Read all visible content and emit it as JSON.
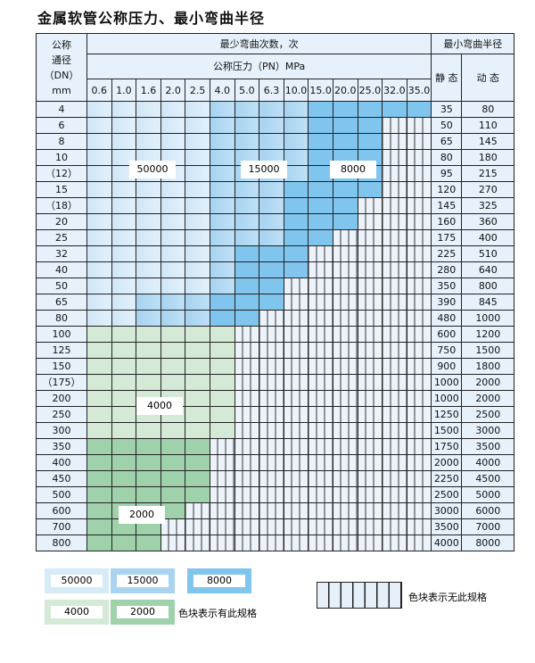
{
  "title": "金属软管公称压力、最小弯曲半径",
  "header": {
    "dn_label": [
      "公称",
      "通径",
      "（DN）",
      "mm"
    ],
    "cycles_label": "最少弯曲次数，次",
    "pressure_label": "公称压力（PN）MPa",
    "radius_label": "最小弯曲半径",
    "static_label": "静 态",
    "dynamic_label": "动 态",
    "pressures": [
      "0.6",
      "1.0",
      "1.6",
      "2.0",
      "2.5",
      "4.0",
      "5.0",
      "6.3",
      "10.0",
      "15.0",
      "20.0",
      "25.0",
      "32.0",
      "35.0"
    ]
  },
  "category_key": {
    "L": "50000",
    "M": "15000",
    "D": "8000",
    "G": "4000",
    "H": "2000",
    "X": "无此规格"
  },
  "colors": {
    "L": "#d6eaf8",
    "M": "#a8d4f2",
    "D": "#80c5ee",
    "G": "#d4e9d6",
    "H": "#9fd2ab"
  },
  "rows": [
    {
      "dn": "4",
      "cells": "LLLLLMMMMDDDDD",
      "static": "35",
      "dynamic": "80"
    },
    {
      "dn": "6",
      "cells": "LLLLLMMMMDDDXX",
      "static": "50",
      "dynamic": "110"
    },
    {
      "dn": "8",
      "cells": "LLLLLMMMMDDDXX",
      "static": "65",
      "dynamic": "145"
    },
    {
      "dn": "10",
      "cells": "LLLLLMMMMDDDXX",
      "static": "80",
      "dynamic": "180"
    },
    {
      "dn": "（12）",
      "cells": "LLLLLMMMMDDDXX",
      "static": "95",
      "dynamic": "215"
    },
    {
      "dn": "15",
      "cells": "LLLLLMMMDDDDXX",
      "static": "120",
      "dynamic": "270"
    },
    {
      "dn": "（18）",
      "cells": "LLLLLMMMDDDXXX",
      "static": "145",
      "dynamic": "325"
    },
    {
      "dn": "20",
      "cells": "LLLLLMMMDDDXXX",
      "static": "160",
      "dynamic": "360"
    },
    {
      "dn": "25",
      "cells": "LLLLLMMMDDXXXX",
      "static": "175",
      "dynamic": "400"
    },
    {
      "dn": "32",
      "cells": "LLLLLMDDDXXXXX",
      "static": "225",
      "dynamic": "510"
    },
    {
      "dn": "40",
      "cells": "LLLLLMDDDXXXXX",
      "static": "280",
      "dynamic": "640"
    },
    {
      "dn": "50",
      "cells": "LLLLLMDDXXXXXX",
      "static": "350",
      "dynamic": "800"
    },
    {
      "dn": "65",
      "cells": "LLMMMDDDXXXXXX",
      "static": "390",
      "dynamic": "845"
    },
    {
      "dn": "80",
      "cells": "LLMMMDDXXXXXXX",
      "static": "480",
      "dynamic": "1000"
    },
    {
      "dn": "100",
      "cells": "GGGGGGXXXXXXXX",
      "static": "600",
      "dynamic": "1200"
    },
    {
      "dn": "125",
      "cells": "GGGGGGXXXXXXXX",
      "static": "750",
      "dynamic": "1500"
    },
    {
      "dn": "150",
      "cells": "GGGGGGXXXXXXXX",
      "static": "900",
      "dynamic": "1800"
    },
    {
      "dn": "（175）",
      "cells": "GGGGGGXXXXXXXX",
      "static": "1000",
      "dynamic": "2000"
    },
    {
      "dn": "200",
      "cells": "GGGGGGXXXXXXXX",
      "static": "1000",
      "dynamic": "2000"
    },
    {
      "dn": "250",
      "cells": "GGGGGGXXXXXXXX",
      "static": "1250",
      "dynamic": "2500"
    },
    {
      "dn": "300",
      "cells": "GGGGGGXXXXXXXX",
      "static": "1500",
      "dynamic": "3000"
    },
    {
      "dn": "350",
      "cells": "HHHHHXXXXXXXXX",
      "static": "1750",
      "dynamic": "3500"
    },
    {
      "dn": "400",
      "cells": "HHHHHXXXXXXXXX",
      "static": "2000",
      "dynamic": "4000"
    },
    {
      "dn": "450",
      "cells": "HHHHHXXXXXXXXX",
      "static": "2250",
      "dynamic": "4500"
    },
    {
      "dn": "500",
      "cells": "HHHHHXXXXXXXXX",
      "static": "2500",
      "dynamic": "5000"
    },
    {
      "dn": "600",
      "cells": "HHHHXXXXXXXXXX",
      "static": "3000",
      "dynamic": "6000"
    },
    {
      "dn": "700",
      "cells": "HHHXXXXXXXXXXX",
      "static": "3500",
      "dynamic": "7000"
    },
    {
      "dn": "800",
      "cells": "HHHXXXXXXXXXXX",
      "static": "4000",
      "dynamic": "8000"
    }
  ],
  "region_labels": {
    "l50000": "50000",
    "l15000": "15000",
    "l8000": "8000",
    "l4000": "4000",
    "l2000": "2000"
  },
  "legend": {
    "items": [
      "50000",
      "15000",
      "8000",
      "4000",
      "2000"
    ],
    "has_spec_text": "色块表示有此规格",
    "no_spec_text": "色块表示无此规格"
  }
}
